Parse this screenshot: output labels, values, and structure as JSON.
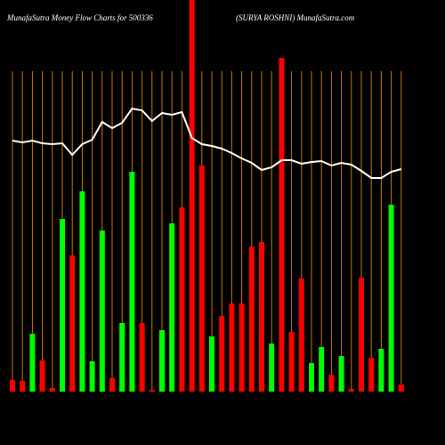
{
  "chart_data": {
    "type": "bar",
    "title": "MunafaSutra  Money Flow  Charts for 500336",
    "subtitle": "(SURYA ROSHNI) MunafaSutra.com",
    "categories": [
      null,
      null,
      null,
      null,
      null,
      null,
      null,
      null,
      null,
      null,
      null,
      null,
      null,
      null,
      null,
      null,
      null,
      null,
      null,
      null,
      null,
      null,
      null,
      null,
      null,
      null,
      null,
      null,
      null,
      null,
      null,
      null,
      null,
      null,
      null,
      null,
      null,
      null,
      null,
      null
    ],
    "values": [
      13,
      12,
      65,
      35,
      4,
      194,
      153,
      225,
      34,
      181,
      15,
      77,
      247,
      77,
      2,
      69,
      189,
      207,
      440,
      254,
      62,
      85,
      99,
      99,
      163,
      168,
      54,
      375,
      67,
      127,
      32,
      50,
      19,
      40,
      3,
      128,
      38,
      48,
      210,
      8
    ],
    "colors": [
      "#ff0000",
      "#ff0000",
      "#00ff00",
      "#ff0000",
      "#ff0000",
      "#00ff00",
      "#ff0000",
      "#00ff00",
      "#00ff00",
      "#00ff00",
      "#ff0000",
      "#00ff00",
      "#00ff00",
      "#ff0000",
      "#ff0000",
      "#00ff00",
      "#00ff00",
      "#ff0000",
      "#ff0000",
      "#ff0000",
      "#00ff00",
      "#ff0000",
      "#ff0000",
      "#ff0000",
      "#ff0000",
      "#ff0000",
      "#00ff00",
      "#ff0000",
      "#ff0000",
      "#ff0000",
      "#00ff00",
      "#00ff00",
      "#ff0000",
      "#00ff00",
      "#ff0000",
      "#ff0000",
      "#ff0000",
      "#00ff00",
      "#00ff00",
      "#ff0000"
    ],
    "line": {
      "color": "#ffffff",
      "values": [
        282,
        280,
        282,
        279,
        278,
        279,
        266,
        278,
        283,
        303,
        296,
        302,
        318,
        316,
        304,
        313,
        311,
        314,
        285,
        278,
        276,
        273,
        268,
        262,
        257,
        249,
        252,
        260,
        260,
        256,
        258,
        259,
        254,
        257,
        255,
        248,
        240,
        240,
        247,
        250
      ]
    },
    "ylim": [
      0,
      440
    ],
    "grid": true,
    "grid_color": "#c87800"
  }
}
